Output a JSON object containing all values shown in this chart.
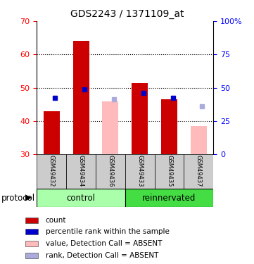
{
  "title": "GDS2243 / 1371109_at",
  "samples": [
    "GSM49432",
    "GSM49434",
    "GSM49436",
    "GSM49433",
    "GSM49435",
    "GSM49437"
  ],
  "bar_values": [
    43.0,
    64.0,
    46.0,
    51.5,
    46.5,
    38.5
  ],
  "bar_absent": [
    false,
    false,
    true,
    false,
    false,
    true
  ],
  "rank_values": [
    47.0,
    49.5,
    46.5,
    48.5,
    47.0,
    44.5
  ],
  "rank_absent": [
    false,
    false,
    true,
    false,
    false,
    true
  ],
  "ylim": [
    30,
    70
  ],
  "ylim_right": [
    0,
    100
  ],
  "yticks_left": [
    30,
    40,
    50,
    60,
    70
  ],
  "yticks_right": [
    0,
    25,
    50,
    75,
    100
  ],
  "color_bar_present": "#cc0000",
  "color_bar_absent": "#ffbbbb",
  "color_rank_present": "#0000cc",
  "color_rank_absent": "#aaaadd",
  "color_group_light": "#aaffaa",
  "color_group_dark": "#44dd44",
  "background_label": "#cccccc",
  "legend_items": [
    {
      "label": "count",
      "color": "#cc0000"
    },
    {
      "label": "percentile rank within the sample",
      "color": "#0000cc"
    },
    {
      "label": "value, Detection Call = ABSENT",
      "color": "#ffbbbb"
    },
    {
      "label": "rank, Detection Call = ABSENT",
      "color": "#aaaadd"
    }
  ]
}
